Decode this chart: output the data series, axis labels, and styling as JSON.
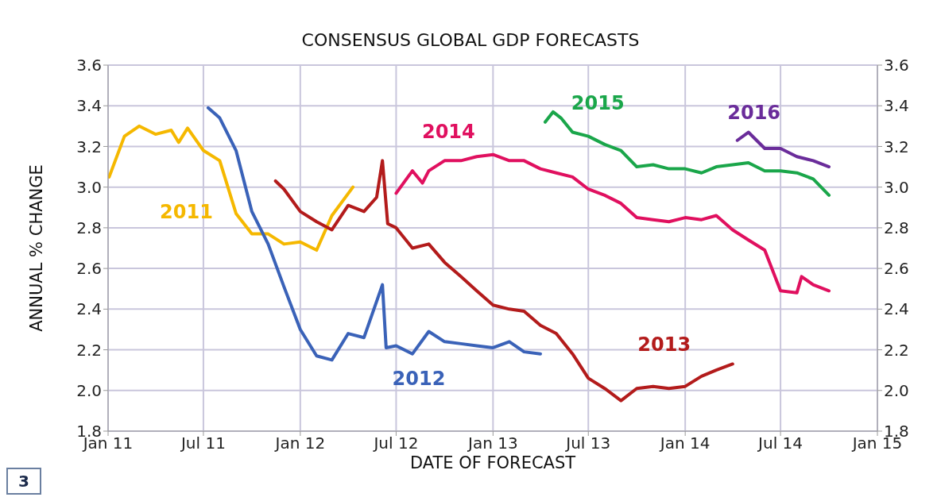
{
  "chart_data": {
    "type": "line",
    "title": "CONSENSUS GLOBAL GDP FORECASTS",
    "xlabel": "DATE OF FORECAST",
    "ylabel": "ANNUAL % CHANGE",
    "xlim": [
      "2011-01-01",
      "2015-01-01"
    ],
    "xticks": [
      {
        "value": "2011-01-01",
        "label": "Jan 11"
      },
      {
        "value": "2011-07-01",
        "label": "Jul 11"
      },
      {
        "value": "2012-01-01",
        "label": "Jan 12"
      },
      {
        "value": "2012-07-01",
        "label": "Jul 12"
      },
      {
        "value": "2013-01-01",
        "label": "Jan 13"
      },
      {
        "value": "2013-07-01",
        "label": "Jul 13"
      },
      {
        "value": "2014-01-01",
        "label": "Jan 14"
      },
      {
        "value": "2014-07-01",
        "label": "Jul 14"
      },
      {
        "value": "2015-01-01",
        "label": "Jan 15"
      }
    ],
    "ylim": [
      1.8,
      3.6
    ],
    "yticks": [
      {
        "value": 1.8,
        "label": "1.8"
      },
      {
        "value": 2.0,
        "label": "2.0"
      },
      {
        "value": 2.2,
        "label": "2.2"
      },
      {
        "value": 2.4,
        "label": "2.4"
      },
      {
        "value": 2.6,
        "label": "2.6"
      },
      {
        "value": 2.8,
        "label": "2.8"
      },
      {
        "value": 3.0,
        "label": "3.0"
      },
      {
        "value": 3.2,
        "label": "3.2"
      },
      {
        "value": 3.4,
        "label": "3.4"
      },
      {
        "value": 3.6,
        "label": "3.6"
      }
    ],
    "y2lim": [
      1.8,
      3.6
    ],
    "y2ticks": [
      {
        "value": 1.8,
        "label": "1.8"
      },
      {
        "value": 2.0,
        "label": "2.0"
      },
      {
        "value": 2.2,
        "label": "2.2"
      },
      {
        "value": 2.4,
        "label": "2.4"
      },
      {
        "value": 2.6,
        "label": "2.6"
      },
      {
        "value": 2.8,
        "label": "2.8"
      },
      {
        "value": 3.0,
        "label": "3.0"
      },
      {
        "value": 3.2,
        "label": "3.2"
      },
      {
        "value": 3.4,
        "label": "3.4"
      },
      {
        "value": 3.6,
        "label": "3.6"
      }
    ],
    "grid": true,
    "marker": "none",
    "line_style": "solid",
    "annotations": [
      "3"
    ],
    "series": [
      {
        "name": "2011",
        "color": "#f5b800",
        "x": [
          "2011-01-03",
          "2011-02-01",
          "2011-03-01",
          "2011-04-01",
          "2011-05-01",
          "2011-05-15",
          "2011-06-01",
          "2011-07-01",
          "2011-08-01",
          "2011-09-01",
          "2011-10-01",
          "2011-11-01",
          "2011-12-01",
          "2012-01-01",
          "2012-02-01",
          "2012-03-01",
          "2012-04-10"
        ],
        "values": [
          3.05,
          3.25,
          3.3,
          3.26,
          3.28,
          3.22,
          3.29,
          3.18,
          3.13,
          2.87,
          2.77,
          2.77,
          2.72,
          2.73,
          2.69,
          2.86,
          3.0
        ]
      },
      {
        "name": "2012",
        "color": "#3a62b8",
        "x": [
          "2011-07-10",
          "2011-08-01",
          "2011-09-01",
          "2011-10-01",
          "2011-11-01",
          "2011-12-01",
          "2012-01-01",
          "2012-02-01",
          "2012-03-01",
          "2012-04-01",
          "2012-05-01",
          "2012-06-05",
          "2012-06-12",
          "2012-07-01",
          "2012-08-01",
          "2012-09-01",
          "2012-10-01",
          "2012-11-01",
          "2012-12-01",
          "2013-01-01",
          "2013-02-01",
          "2013-03-01",
          "2013-04-01"
        ],
        "values": [
          3.39,
          3.34,
          3.18,
          2.88,
          2.72,
          2.51,
          2.3,
          2.17,
          2.15,
          2.28,
          2.26,
          2.52,
          2.21,
          2.22,
          2.18,
          2.29,
          2.24,
          2.23,
          2.22,
          2.21,
          2.24,
          2.19,
          2.18
        ]
      },
      {
        "name": "2013",
        "color": "#b31b1b",
        "x": [
          "2011-11-15",
          "2011-12-01",
          "2012-01-01",
          "2012-02-01",
          "2012-03-01",
          "2012-04-01",
          "2012-05-01",
          "2012-05-25",
          "2012-06-05",
          "2012-06-15",
          "2012-07-01",
          "2012-08-01",
          "2012-09-01",
          "2012-10-01",
          "2012-11-01",
          "2012-12-01",
          "2013-01-01",
          "2013-02-01",
          "2013-03-01",
          "2013-04-01",
          "2013-05-01",
          "2013-06-01",
          "2013-07-01",
          "2013-08-01",
          "2013-09-01",
          "2013-10-01",
          "2013-11-01",
          "2013-12-01",
          "2014-01-01",
          "2014-02-01",
          "2014-03-01",
          "2014-04-01"
        ],
        "values": [
          3.03,
          2.99,
          2.88,
          2.83,
          2.79,
          2.91,
          2.88,
          2.95,
          3.13,
          2.82,
          2.8,
          2.7,
          2.72,
          2.63,
          2.56,
          2.49,
          2.42,
          2.4,
          2.39,
          2.32,
          2.28,
          2.18,
          2.06,
          2.01,
          1.95,
          2.01,
          2.02,
          2.01,
          2.02,
          2.07,
          2.1,
          2.13
        ]
      },
      {
        "name": "2014",
        "color": "#e0105f",
        "x": [
          "2012-07-01",
          "2012-08-01",
          "2012-08-20",
          "2012-09-01",
          "2012-10-01",
          "2012-11-01",
          "2012-12-01",
          "2013-01-01",
          "2013-02-01",
          "2013-03-01",
          "2013-04-01",
          "2013-05-01",
          "2013-06-01",
          "2013-07-01",
          "2013-08-01",
          "2013-09-01",
          "2013-10-01",
          "2013-11-01",
          "2013-12-01",
          "2014-01-01",
          "2014-02-01",
          "2014-03-01",
          "2014-04-01",
          "2014-05-01",
          "2014-06-01",
          "2014-07-01",
          "2014-08-01",
          "2014-08-10",
          "2014-09-01",
          "2014-10-01"
        ],
        "values": [
          2.97,
          3.08,
          3.02,
          3.08,
          3.13,
          3.13,
          3.15,
          3.16,
          3.13,
          3.13,
          3.09,
          3.07,
          3.05,
          2.99,
          2.96,
          2.92,
          2.85,
          2.84,
          2.83,
          2.85,
          2.84,
          2.86,
          2.79,
          2.74,
          2.69,
          2.49,
          2.48,
          2.56,
          2.52,
          2.49
        ]
      },
      {
        "name": "2015",
        "color": "#1aa64a",
        "x": [
          "2013-04-10",
          "2013-04-25",
          "2013-05-10",
          "2013-06-01",
          "2013-07-01",
          "2013-08-01",
          "2013-09-01",
          "2013-10-01",
          "2013-11-01",
          "2013-12-01",
          "2014-01-01",
          "2014-02-01",
          "2014-03-01",
          "2014-04-01",
          "2014-05-01",
          "2014-06-01",
          "2014-07-01",
          "2014-08-01",
          "2014-09-01",
          "2014-10-01"
        ],
        "values": [
          3.32,
          3.37,
          3.34,
          3.27,
          3.25,
          3.21,
          3.18,
          3.1,
          3.11,
          3.09,
          3.09,
          3.07,
          3.1,
          3.11,
          3.12,
          3.08,
          3.08,
          3.07,
          3.04,
          2.96
        ]
      },
      {
        "name": "2016",
        "color": "#6a2c9a",
        "x": [
          "2014-04-10",
          "2014-05-01",
          "2014-06-01",
          "2014-07-01",
          "2014-08-01",
          "2014-09-01",
          "2014-10-01"
        ],
        "values": [
          3.23,
          3.27,
          3.19,
          3.19,
          3.15,
          3.13,
          3.1
        ]
      }
    ]
  }
}
